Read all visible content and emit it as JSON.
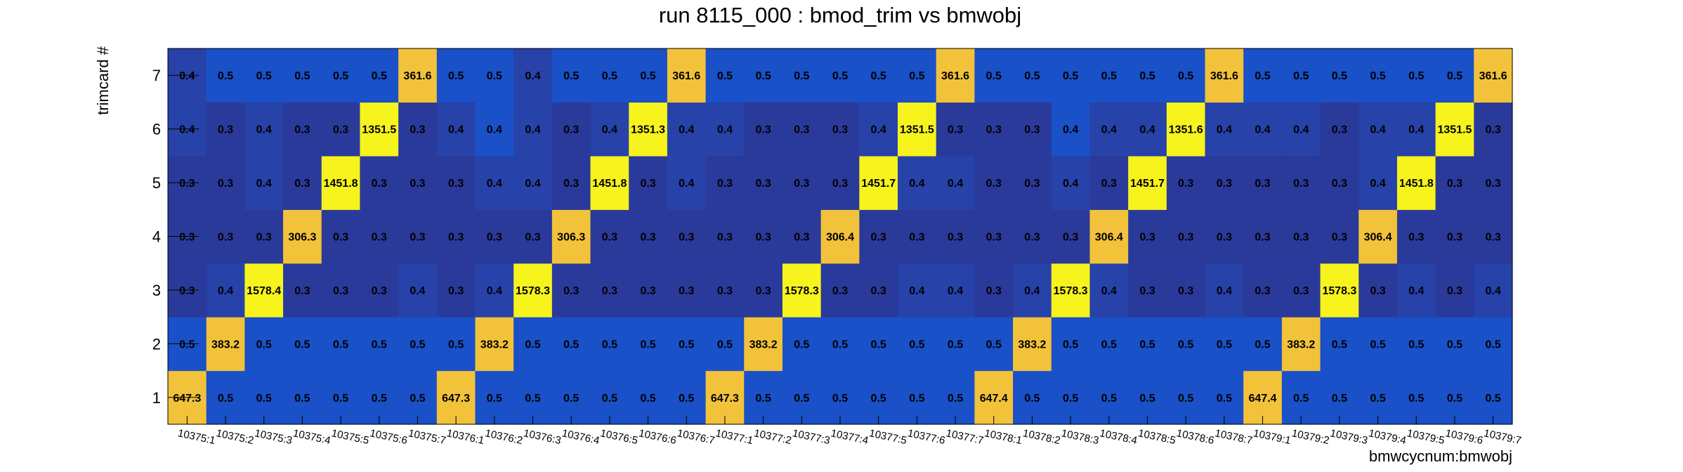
{
  "chart_data": {
    "type": "heatmap",
    "title": "run 8115_000 : bmod_trim vs bmwobj",
    "xlabel": "bmwcycnum:bmwobj",
    "ylabel": "trimcard #",
    "x_categories": [
      "10375:1",
      "10375:2",
      "10375:3",
      "10375:4",
      "10375:5",
      "10375:6",
      "10375:7",
      "10376:1",
      "10376:2",
      "10376:3",
      "10376:4",
      "10376:5",
      "10376:6",
      "10376:7",
      "10377:1",
      "10377:2",
      "10377:3",
      "10377:4",
      "10377:5",
      "10377:6",
      "10377:7",
      "10378:1",
      "10378:2",
      "10378:3",
      "10378:4",
      "10378:5",
      "10378:6",
      "10378:7",
      "10379:1",
      "10379:2",
      "10379:3",
      "10379:4",
      "10379:5",
      "10379:6",
      "10379:7"
    ],
    "y_categories": [
      "1",
      "2",
      "3",
      "4",
      "5",
      "6",
      "7"
    ],
    "rows": [
      {
        "trimcard": "1",
        "values": [
          "647.3",
          "0.5",
          "0.5",
          "0.5",
          "0.5",
          "0.5",
          "0.5",
          "647.3",
          "0.5",
          "0.5",
          "0.5",
          "0.5",
          "0.5",
          "0.5",
          "647.3",
          "0.5",
          "0.5",
          "0.5",
          "0.5",
          "0.5",
          "0.5",
          "647.4",
          "0.5",
          "0.5",
          "0.5",
          "0.5",
          "0.5",
          "0.5",
          "647.4",
          "0.5",
          "0.5",
          "0.5",
          "0.5",
          "0.5",
          "0.5"
        ]
      },
      {
        "trimcard": "2",
        "values": [
          "0.5",
          "383.2",
          "0.5",
          "0.5",
          "0.5",
          "0.5",
          "0.5",
          "0.5",
          "383.2",
          "0.5",
          "0.5",
          "0.5",
          "0.5",
          "0.5",
          "0.5",
          "383.2",
          "0.5",
          "0.5",
          "0.5",
          "0.5",
          "0.5",
          "0.5",
          "383.2",
          "0.5",
          "0.5",
          "0.5",
          "0.5",
          "0.5",
          "0.5",
          "383.2",
          "0.5",
          "0.5",
          "0.5",
          "0.5",
          "0.5"
        ]
      },
      {
        "trimcard": "3",
        "values": [
          "0.3",
          "0.4",
          "1578.4",
          "0.3",
          "0.3",
          "0.3",
          "0.4",
          "0.3",
          "0.4",
          "1578.3",
          "0.3",
          "0.3",
          "0.3",
          "0.3",
          "0.3",
          "0.3",
          "1578.3",
          "0.3",
          "0.3",
          "0.4",
          "0.4",
          "0.3",
          "0.4",
          "1578.3",
          "0.4",
          "0.3",
          "0.3",
          "0.4",
          "0.3",
          "0.3",
          "1578.3",
          "0.3",
          "0.4",
          "0.3",
          "0.4"
        ]
      },
      {
        "trimcard": "4",
        "values": [
          "0.3",
          "0.3",
          "0.3",
          "306.3",
          "0.3",
          "0.3",
          "0.3",
          "0.3",
          "0.3",
          "0.3",
          "306.3",
          "0.3",
          "0.3",
          "0.3",
          "0.3",
          "0.3",
          "0.3",
          "306.4",
          "0.3",
          "0.3",
          "0.3",
          "0.3",
          "0.3",
          "0.3",
          "306.4",
          "0.3",
          "0.3",
          "0.3",
          "0.3",
          "0.3",
          "0.3",
          "306.4",
          "0.3",
          "0.3",
          "0.3"
        ]
      },
      {
        "trimcard": "5",
        "values": [
          "0.3",
          "0.3",
          "0.4",
          "0.3",
          "1451.8",
          "0.3",
          "0.3",
          "0.3",
          "0.4",
          "0.4",
          "0.3",
          "1451.8",
          "0.3",
          "0.4",
          "0.3",
          "0.3",
          "0.3",
          "0.3",
          "1451.7",
          "0.4",
          "0.4",
          "0.3",
          "0.3",
          "0.4",
          "0.3",
          "1451.7",
          "0.3",
          "0.3",
          "0.3",
          "0.3",
          "0.3",
          "0.4",
          "1451.8",
          "0.3",
          "0.3"
        ]
      },
      {
        "trimcard": "6",
        "values": [
          "0.4",
          "0.3",
          "0.4",
          "0.3",
          "0.3",
          "1351.5",
          "0.3",
          "0.4",
          "0.4",
          "0.4",
          "0.3",
          "0.4",
          "1351.3",
          "0.4",
          "0.4",
          "0.3",
          "0.3",
          "0.3",
          "0.4",
          "1351.5",
          "0.3",
          "0.3",
          "0.3",
          "0.4",
          "0.4",
          "0.4",
          "1351.6",
          "0.4",
          "0.4",
          "0.4",
          "0.3",
          "0.4",
          "0.4",
          "1351.5",
          "0.3"
        ]
      },
      {
        "trimcard": "7",
        "values": [
          "0.4",
          "0.5",
          "0.5",
          "0.5",
          "0.5",
          "0.5",
          "361.6",
          "0.5",
          "0.5",
          "0.4",
          "0.5",
          "0.5",
          "0.5",
          "361.6",
          "0.5",
          "0.5",
          "0.5",
          "0.5",
          "0.5",
          "0.5",
          "361.6",
          "0.5",
          "0.5",
          "0.5",
          "0.5",
          "0.5",
          "0.5",
          "361.6",
          "0.5",
          "0.5",
          "0.5",
          "0.5",
          "0.5",
          "0.5",
          "361.6"
        ]
      }
    ],
    "z_range": [
      0,
      1600
    ],
    "grid": false,
    "legend": "none",
    "palette": {
      "low_0.3": "#2a3a9a",
      "low_0.4": "#2742a8",
      "low_0.5": "#1a50c8",
      "mid_300": "#f2c23a",
      "high_1300": "#f7f31c"
    },
    "overrides": [
      {
        "trimcard": "6",
        "x": "10376:2",
        "color": "#1a50c8"
      },
      {
        "trimcard": "6",
        "x": "10378:3",
        "color": "#1a50c8"
      },
      {
        "trimcard": "7",
        "x": "10376:3",
        "color": "#2742a8"
      }
    ]
  }
}
